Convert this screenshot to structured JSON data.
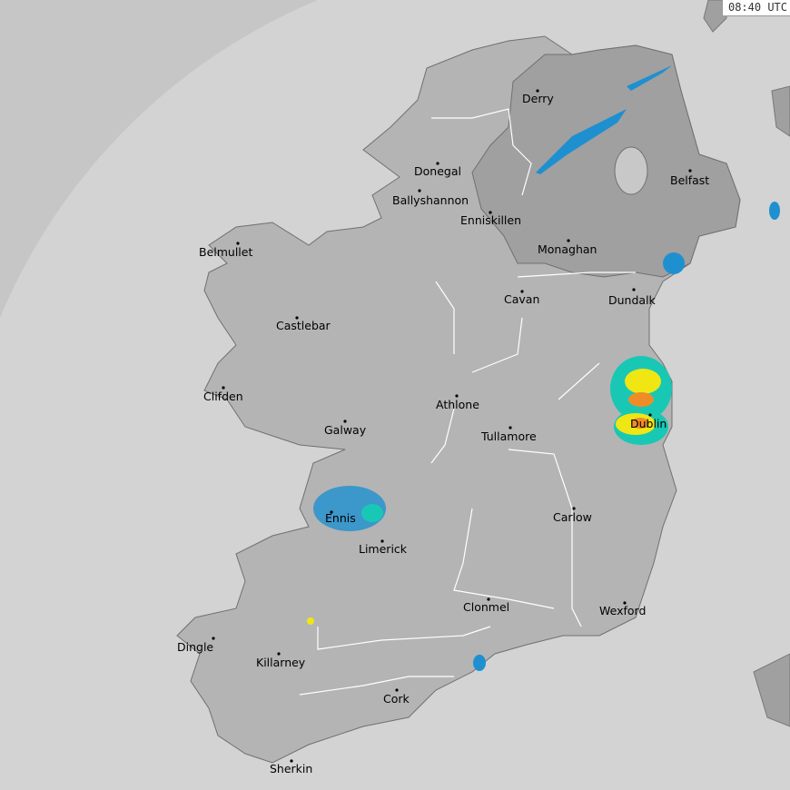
{
  "timestamp": "08:40 UTC",
  "colors": {
    "sea": "#d3d3d3",
    "out_of_range": "#c6c6c6",
    "land_roi": "#b4b4b4",
    "land_other": "#a0a0a0",
    "rain_light": "#1e90d0",
    "rain_moderate": "#19c8b4",
    "rain_heavy": "#f0e614",
    "rain_intense": "#f08c28"
  },
  "cities": [
    "Derry",
    "Donegal",
    "Ballyshannon",
    "Enniskillen",
    "Belfast",
    "Belmullet",
    "Monaghan",
    "Cavan",
    "Dundalk",
    "Castlebar",
    "Clifden",
    "Athlone",
    "Dublin",
    "Galway",
    "Tullamore",
    "Ennis",
    "Carlow",
    "Limerick",
    "Clonmel",
    "Wexford",
    "Dingle",
    "Killarney",
    "Cork",
    "Sherkin"
  ]
}
